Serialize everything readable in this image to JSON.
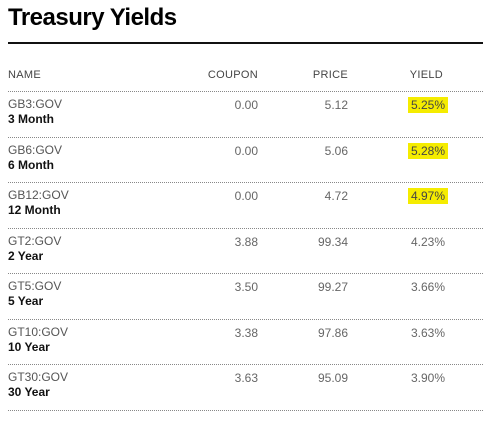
{
  "title": "Treasury Yields",
  "columns": {
    "name": "NAME",
    "coupon": "COUPON",
    "price": "PRICE",
    "yield": "YIELD"
  },
  "highlight_color": "#f5ec00",
  "rows": [
    {
      "ticker": "GB3:GOV",
      "tenor": "3 Month",
      "coupon": "0.00",
      "price": "5.12",
      "yield": "5.25%",
      "highlighted": true
    },
    {
      "ticker": "GB6:GOV",
      "tenor": "6 Month",
      "coupon": "0.00",
      "price": "5.06",
      "yield": "5.28%",
      "highlighted": true
    },
    {
      "ticker": "GB12:GOV",
      "tenor": "12 Month",
      "coupon": "0.00",
      "price": "4.72",
      "yield": "4.97%",
      "highlighted": true
    },
    {
      "ticker": "GT2:GOV",
      "tenor": "2 Year",
      "coupon": "3.88",
      "price": "99.34",
      "yield": "4.23%",
      "highlighted": false
    },
    {
      "ticker": "GT5:GOV",
      "tenor": "5 Year",
      "coupon": "3.50",
      "price": "99.27",
      "yield": "3.66%",
      "highlighted": false
    },
    {
      "ticker": "GT10:GOV",
      "tenor": "10 Year",
      "coupon": "3.38",
      "price": "97.86",
      "yield": "3.63%",
      "highlighted": false
    },
    {
      "ticker": "GT30:GOV",
      "tenor": "30 Year",
      "coupon": "3.63",
      "price": "95.09",
      "yield": "3.90%",
      "highlighted": false
    }
  ]
}
